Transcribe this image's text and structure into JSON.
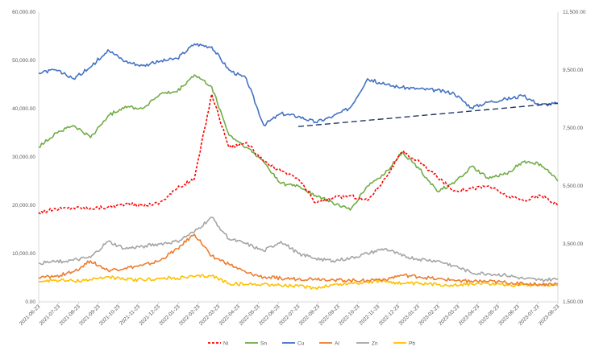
{
  "chart_data": {
    "type": "line",
    "title": "",
    "xlabel": "",
    "ylabel": "",
    "left_axis": {
      "ylim": [
        0,
        60000
      ],
      "ticks": [
        "0.00",
        "10,000.00",
        "20,000.00",
        "30,000.00",
        "40,000.00",
        "50,000.00",
        "60,000.00"
      ]
    },
    "right_axis": {
      "ylim": [
        1500,
        11500
      ],
      "ticks": [
        "1,500.00",
        "3,500.00",
        "5,500.00",
        "7,500.00",
        "9,500.00",
        "11,500.00"
      ]
    },
    "x_tick_labels": [
      "2021-06-23",
      "2021-07-23",
      "2021-08-23",
      "2021-09-23",
      "2021-10-23",
      "2021-11-23",
      "2021-12-23",
      "2022-01-23",
      "2022-02-23",
      "2022-03-23",
      "2022-04-23",
      "2022-05-23",
      "2022-06-23",
      "2022-07-23",
      "2022-08-23",
      "2022-09-23",
      "2022-10-23",
      "2022-11-23",
      "2022-12-23",
      "2023-01-23",
      "2023-02-23",
      "2023-03-23",
      "2023-04-23",
      "2023-05-23",
      "2023-06-23",
      "2023-07-23",
      "2023-08-23"
    ],
    "grid": false,
    "legend_position": "bottom",
    "series": [
      {
        "name": "Ni",
        "axis": "left",
        "color": "#FF0000",
        "dash": true,
        "values": [
          18500,
          19200,
          19500,
          19400,
          19600,
          20300,
          20000,
          20500,
          23500,
          25500,
          43000,
          32000,
          33000,
          29000,
          27000,
          25500,
          20500,
          21500,
          22000,
          21000,
          25500,
          31000,
          29000,
          26000,
          23000,
          23500,
          24000,
          22000,
          21000,
          22000,
          20000
        ]
      },
      {
        "name": "Sn",
        "axis": "left",
        "color": "#70AD47",
        "dash": false,
        "values": [
          32000,
          35000,
          36500,
          34000,
          38500,
          40500,
          40000,
          43000,
          43500,
          47000,
          44500,
          34500,
          32000,
          29000,
          24500,
          24000,
          22000,
          20500,
          19000,
          24000,
          26500,
          31000,
          27500,
          23000,
          24500,
          28000,
          25500,
          26500,
          29000,
          28500,
          25000
        ]
      },
      {
        "name": "Cu",
        "axis": "right",
        "color": "#4472C4",
        "dash": false,
        "values": [
          9400,
          9500,
          9200,
          9600,
          10200,
          9800,
          9650,
          9800,
          9900,
          10400,
          10300,
          9500,
          9200,
          7600,
          8000,
          7900,
          7700,
          7900,
          8200,
          9200,
          9000,
          8900,
          8850,
          8800,
          8700,
          8200,
          8400,
          8500,
          8600,
          8300,
          8350
        ]
      },
      {
        "name": "Al",
        "axis": "left",
        "color": "#ED7D31",
        "dash": false,
        "values": [
          5000,
          5300,
          6200,
          8500,
          6500,
          7000,
          7500,
          8500,
          11000,
          14000,
          9500,
          7800,
          6000,
          5100,
          4900,
          4700,
          4800,
          4600,
          4400,
          4500,
          4700,
          5500,
          5200,
          4700,
          4500,
          4300,
          4200,
          4000,
          3800,
          3600,
          3700
        ]
      },
      {
        "name": "Zn",
        "axis": "left",
        "color": "#A5A5A5",
        "dash": false,
        "values": [
          8000,
          8300,
          8600,
          9200,
          12500,
          11000,
          11500,
          12000,
          12500,
          14500,
          17500,
          13000,
          12000,
          10500,
          12500,
          10000,
          9000,
          8500,
          9000,
          10000,
          11000,
          9500,
          8800,
          8500,
          7500,
          6000,
          5800,
          5500,
          4800,
          4500,
          4700
        ]
      },
      {
        "name": "Pb",
        "axis": "left",
        "color": "#FFC000",
        "dash": false,
        "values": [
          4200,
          4500,
          4300,
          4600,
          5200,
          4600,
          4600,
          4800,
          4900,
          5200,
          5400,
          3800,
          3600,
          3700,
          3400,
          3200,
          2900,
          3500,
          3800,
          4100,
          4300,
          3800,
          3700,
          3600,
          3500,
          3700,
          3800,
          3600,
          3500,
          3600,
          3400
        ]
      }
    ],
    "trendline": {
      "axis": "right",
      "color": "#203864",
      "dash": true,
      "from": {
        "x": "2022-07-23",
        "y": 7550
      },
      "to": {
        "x": "2023-08-23",
        "y": 8350
      }
    }
  }
}
